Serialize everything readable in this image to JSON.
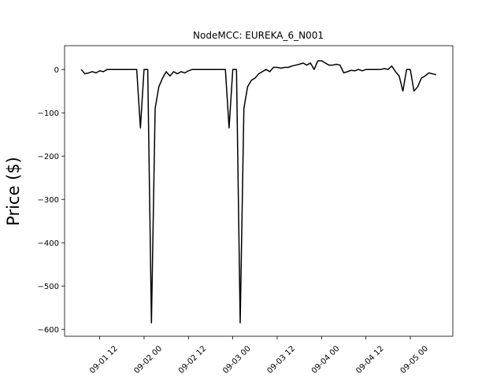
{
  "chart_data": {
    "type": "line",
    "title": "NodeMCC: EUREKA_6_N001",
    "y_label": "Price ($)",
    "color": "#000000",
    "x": [
      "09-01 07:00",
      "09-01 08:00",
      "09-01 09:00",
      "09-01 10:00",
      "09-01 11:00",
      "09-01 12:00",
      "09-01 13:00",
      "09-01 14:00",
      "09-01 15:00",
      "09-01 16:00",
      "09-01 17:00",
      "09-01 18:00",
      "09-01 19:00",
      "09-01 20:00",
      "09-01 21:00",
      "09-01 22:00",
      "09-01 23:00",
      "09-02 00:00",
      "09-02 01:00",
      "09-02 02:00",
      "09-02 03:00",
      "09-02 04:00",
      "09-02 05:00",
      "09-02 06:00",
      "09-02 07:00",
      "09-02 08:00",
      "09-02 09:00",
      "09-02 10:00",
      "09-02 11:00",
      "09-02 12:00",
      "09-02 13:00",
      "09-02 14:00",
      "09-02 15:00",
      "09-02 16:00",
      "09-02 17:00",
      "09-02 18:00",
      "09-02 19:00",
      "09-02 20:00",
      "09-02 21:00",
      "09-02 22:00",
      "09-02 23:00",
      "09-03 00:00",
      "09-03 01:00",
      "09-03 02:00",
      "09-03 03:00",
      "09-03 04:00",
      "09-03 05:00",
      "09-03 06:00",
      "09-03 07:00",
      "09-03 08:00",
      "09-03 09:00",
      "09-03 10:00",
      "09-03 11:00",
      "09-03 12:00",
      "09-03 13:00",
      "09-03 14:00",
      "09-03 15:00",
      "09-03 16:00",
      "09-03 17:00",
      "09-03 18:00",
      "09-03 19:00",
      "09-03 20:00",
      "09-03 21:00",
      "09-03 22:00",
      "09-03 23:00",
      "09-04 00:00",
      "09-04 01:00",
      "09-04 02:00",
      "09-04 03:00",
      "09-04 04:00",
      "09-04 05:00",
      "09-04 06:00",
      "09-04 07:00",
      "09-04 08:00",
      "09-04 09:00",
      "09-04 10:00",
      "09-04 11:00",
      "09-04 12:00",
      "09-04 13:00",
      "09-04 14:00",
      "09-04 15:00",
      "09-04 16:00",
      "09-04 17:00",
      "09-04 18:00",
      "09-04 19:00",
      "09-04 20:00",
      "09-04 21:00",
      "09-04 22:00",
      "09-04 23:00",
      "09-05 00:00",
      "09-05 01:00",
      "09-05 02:00",
      "09-05 03:00",
      "09-05 04:00",
      "09-05 05:00",
      "09-05 06:00",
      "09-05 07:00"
    ],
    "values": [
      0,
      -10,
      -8,
      -5,
      -8,
      -3,
      -5,
      0,
      0,
      0,
      0,
      0,
      0,
      0,
      0,
      0,
      -135,
      0,
      0,
      -585,
      -90,
      -40,
      -20,
      -5,
      -15,
      -5,
      -10,
      -5,
      -8,
      -3,
      0,
      0,
      0,
      0,
      0,
      0,
      0,
      0,
      0,
      0,
      -135,
      0,
      0,
      -585,
      -90,
      -40,
      -25,
      -20,
      -10,
      -5,
      0,
      -5,
      5,
      5,
      3,
      5,
      5,
      8,
      10,
      12,
      15,
      10,
      15,
      0,
      20,
      20,
      15,
      10,
      10,
      12,
      10,
      -8,
      -5,
      -2,
      -3,
      0,
      -3,
      0,
      0,
      0,
      0,
      0,
      2,
      0,
      8,
      -5,
      -15,
      -50,
      0,
      0,
      -50,
      -40,
      -20,
      -15,
      -8,
      -10,
      -12
    ],
    "xlim": [
      "09-01 02:30",
      "09-05 11:30"
    ],
    "xticks": [
      {
        "value": "09-01 12:00",
        "label": "09-01 12"
      },
      {
        "value": "09-02 00:00",
        "label": "09-02 00"
      },
      {
        "value": "09-02 12:00",
        "label": "09-02 12"
      },
      {
        "value": "09-03 00:00",
        "label": "09-03 00"
      },
      {
        "value": "09-03 12:00",
        "label": "09-03 12"
      },
      {
        "value": "09-04 00:00",
        "label": "09-04 00"
      },
      {
        "value": "09-04 12:00",
        "label": "09-04 12"
      },
      {
        "value": "09-05 00:00",
        "label": "09-05 00"
      }
    ],
    "ylim": [
      -616,
      55
    ],
    "yticks": [
      {
        "value": -600,
        "label": "−600"
      },
      {
        "value": -500,
        "label": "−500"
      },
      {
        "value": -400,
        "label": "−400"
      },
      {
        "value": -300,
        "label": "−300"
      },
      {
        "value": -200,
        "label": "−200"
      },
      {
        "value": -100,
        "label": "−100"
      },
      0
    ]
  }
}
